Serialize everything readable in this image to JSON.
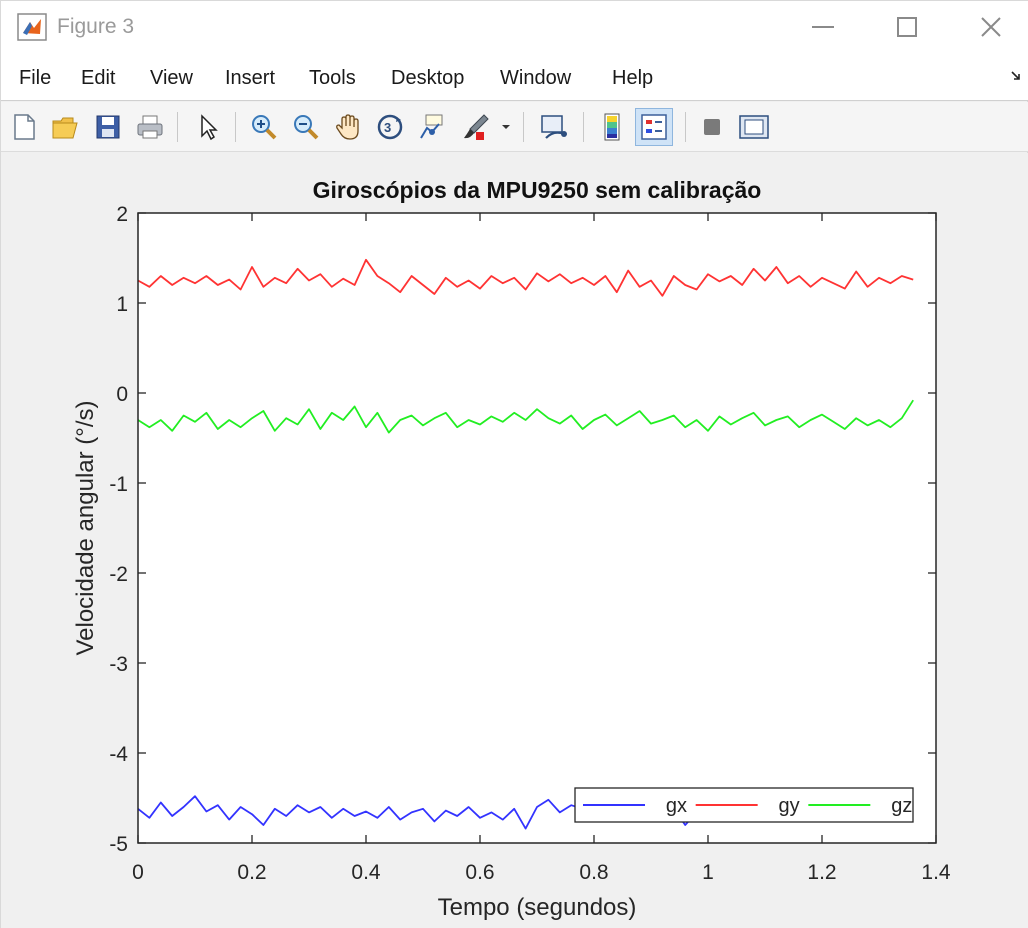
{
  "window": {
    "title": "Figure 3"
  },
  "menu": {
    "items": [
      "File",
      "Edit",
      "View",
      "Insert",
      "Tools",
      "Desktop",
      "Window",
      "Help"
    ]
  },
  "toolbar": {
    "buttons": [
      "new-figure-icon",
      "open-file-icon",
      "save-icon",
      "print-icon",
      "pointer-icon",
      "zoom-in-icon",
      "zoom-out-icon",
      "pan-hand-icon",
      "rotate-3d-icon",
      "data-cursor-icon",
      "brush-icon",
      "link-plot-icon",
      "colorbar-icon",
      "legend-icon",
      "hide-plot-tools-icon",
      "show-plot-tools-icon"
    ]
  },
  "colors": {
    "gx": "#3333ff",
    "gy": "#ff3333",
    "gz": "#22ee22"
  },
  "chart_data": {
    "type": "line",
    "title": "Giroscópios da MPU9250 sem calibração",
    "xlabel": "Tempo (segundos)",
    "ylabel": "Velocidade angular (°/s)",
    "xlim": [
      0,
      1.4
    ],
    "ylim": [
      -5,
      2
    ],
    "xticks": [
      "0",
      "0.2",
      "0.4",
      "0.6",
      "0.8",
      "1",
      "1.2",
      "1.4"
    ],
    "yticks": [
      "2",
      "1",
      "0",
      "-1",
      "-2",
      "-3",
      "-4",
      "-5"
    ],
    "grid": false,
    "legend": {
      "placement": "bottom-right",
      "orientation": "horizontal",
      "entries": [
        "gx",
        "gy",
        "gz"
      ]
    },
    "x": [
      0,
      0.02,
      0.04,
      0.06,
      0.08,
      0.1,
      0.12,
      0.14,
      0.16,
      0.18,
      0.2,
      0.22,
      0.24,
      0.26,
      0.28,
      0.3,
      0.32,
      0.34,
      0.36,
      0.38,
      0.4,
      0.42,
      0.44,
      0.46,
      0.48,
      0.5,
      0.52,
      0.54,
      0.56,
      0.58,
      0.6,
      0.62,
      0.64,
      0.66,
      0.68,
      0.7,
      0.72,
      0.74,
      0.76,
      0.78,
      0.8,
      0.82,
      0.84,
      0.86,
      0.88,
      0.9,
      0.92,
      0.94,
      0.96,
      0.98,
      1.0,
      1.02,
      1.04,
      1.06,
      1.08,
      1.1,
      1.12,
      1.14,
      1.16,
      1.18,
      1.2,
      1.22,
      1.24,
      1.26,
      1.28,
      1.3,
      1.32,
      1.34,
      1.36
    ],
    "series": [
      {
        "name": "gx",
        "values": [
          -4.62,
          -4.72,
          -4.55,
          -4.7,
          -4.6,
          -4.48,
          -4.65,
          -4.58,
          -4.74,
          -4.6,
          -4.68,
          -4.8,
          -4.62,
          -4.7,
          -4.58,
          -4.66,
          -4.6,
          -4.72,
          -4.62,
          -4.7,
          -4.65,
          -4.72,
          -4.6,
          -4.74,
          -4.66,
          -4.62,
          -4.76,
          -4.64,
          -4.7,
          -4.6,
          -4.72,
          -4.66,
          -4.74,
          -4.62,
          -4.84,
          -4.6,
          -4.52,
          -4.66,
          -4.58,
          -4.62,
          -4.68,
          -4.6,
          -4.72,
          -4.66,
          -4.7,
          -4.6,
          -4.76,
          -4.62,
          -4.8,
          -4.66,
          -4.7,
          -4.62,
          -4.68,
          -4.74,
          -4.6,
          -4.7,
          -4.64,
          -4.76,
          -4.66,
          -4.7,
          -4.62,
          -4.7,
          -4.66,
          -4.72,
          -4.62,
          -4.7,
          -4.65,
          -4.68,
          -4.62
        ]
      },
      {
        "name": "gy",
        "values": [
          1.25,
          1.18,
          1.3,
          1.2,
          1.28,
          1.22,
          1.3,
          1.2,
          1.26,
          1.15,
          1.4,
          1.18,
          1.28,
          1.22,
          1.38,
          1.25,
          1.32,
          1.18,
          1.27,
          1.2,
          1.48,
          1.3,
          1.22,
          1.12,
          1.3,
          1.2,
          1.1,
          1.28,
          1.18,
          1.25,
          1.16,
          1.3,
          1.22,
          1.28,
          1.15,
          1.33,
          1.24,
          1.32,
          1.22,
          1.28,
          1.2,
          1.3,
          1.12,
          1.36,
          1.18,
          1.25,
          1.08,
          1.3,
          1.2,
          1.15,
          1.32,
          1.24,
          1.3,
          1.2,
          1.38,
          1.25,
          1.4,
          1.22,
          1.3,
          1.18,
          1.28,
          1.22,
          1.16,
          1.35,
          1.18,
          1.28,
          1.22,
          1.3,
          1.26
        ]
      },
      {
        "name": "gz",
        "values": [
          -0.3,
          -0.38,
          -0.3,
          -0.42,
          -0.25,
          -0.32,
          -0.22,
          -0.4,
          -0.3,
          -0.38,
          -0.28,
          -0.2,
          -0.42,
          -0.28,
          -0.35,
          -0.18,
          -0.4,
          -0.22,
          -0.3,
          -0.15,
          -0.38,
          -0.22,
          -0.44,
          -0.3,
          -0.25,
          -0.36,
          -0.28,
          -0.22,
          -0.38,
          -0.3,
          -0.35,
          -0.26,
          -0.32,
          -0.22,
          -0.3,
          -0.18,
          -0.28,
          -0.34,
          -0.25,
          -0.4,
          -0.3,
          -0.24,
          -0.36,
          -0.28,
          -0.2,
          -0.34,
          -0.3,
          -0.25,
          -0.38,
          -0.3,
          -0.42,
          -0.26,
          -0.35,
          -0.28,
          -0.22,
          -0.36,
          -0.3,
          -0.26,
          -0.38,
          -0.3,
          -0.24,
          -0.32,
          -0.4,
          -0.28,
          -0.36,
          -0.3,
          -0.38,
          -0.28,
          -0.08
        ]
      }
    ]
  }
}
